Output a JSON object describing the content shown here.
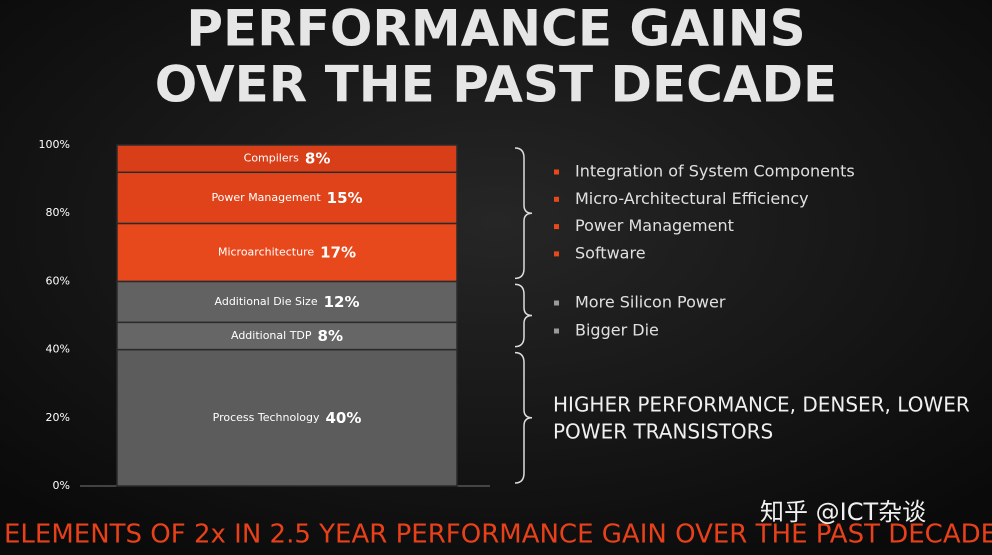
{
  "chart_data": {
    "type": "stacked-bar",
    "title": [
      "PERFORMANCE GAINS",
      "OVER THE PAST DECADE"
    ],
    "ylim": [
      0,
      100
    ],
    "yticks": [
      {
        "value": 0,
        "label": "0%"
      },
      {
        "value": 20,
        "label": "20%"
      },
      {
        "value": 40,
        "label": "40%"
      },
      {
        "value": 60,
        "label": "60%"
      },
      {
        "value": 80,
        "label": "80%"
      },
      {
        "value": 100,
        "label": "100%"
      }
    ],
    "grid": false,
    "series": [
      {
        "name": "Process Technology",
        "color": "#5c5c5c",
        "values": [
          40
        ],
        "value_labels": [
          "40%"
        ]
      },
      {
        "name": "Additional TDP",
        "color": "#666666",
        "values": [
          8
        ],
        "value_labels": [
          "8%"
        ]
      },
      {
        "name": "Additional Die Size",
        "color": "#626262",
        "values": [
          12
        ],
        "value_labels": [
          "12%"
        ]
      },
      {
        "name": "Microarchitecture",
        "color": "#e8491c",
        "values": [
          17
        ],
        "value_labels": [
          "17%"
        ]
      },
      {
        "name": "Power Management",
        "color": "#e0431a",
        "values": [
          15
        ],
        "value_labels": [
          "15%"
        ]
      },
      {
        "name": "Compilers",
        "color": "#d83e18",
        "values": [
          8
        ],
        "value_labels": [
          "8%"
        ]
      }
    ],
    "groups": [
      {
        "range": [
          60,
          100
        ],
        "marker_color": "#e8491c",
        "bullets": [
          "Integration of System Components",
          "Micro-Architectural Efficiency",
          "Power Management",
          "Software"
        ]
      },
      {
        "range": [
          40,
          60
        ],
        "marker_color": "#9a9a9a",
        "bullets": [
          "More Silicon Power",
          "Bigger Die"
        ]
      },
      {
        "range": [
          0,
          40
        ],
        "lines": [
          "HIGHER PERFORMANCE, DENSER, LOWER",
          "POWER TRANSISTORS"
        ]
      }
    ],
    "footnote": "ELEMENTS OF 2x IN 2.5 YEAR PERFORMANCE GAIN OVER THE PAST DECADE",
    "watermark": "知乎 @ICT杂谈"
  }
}
